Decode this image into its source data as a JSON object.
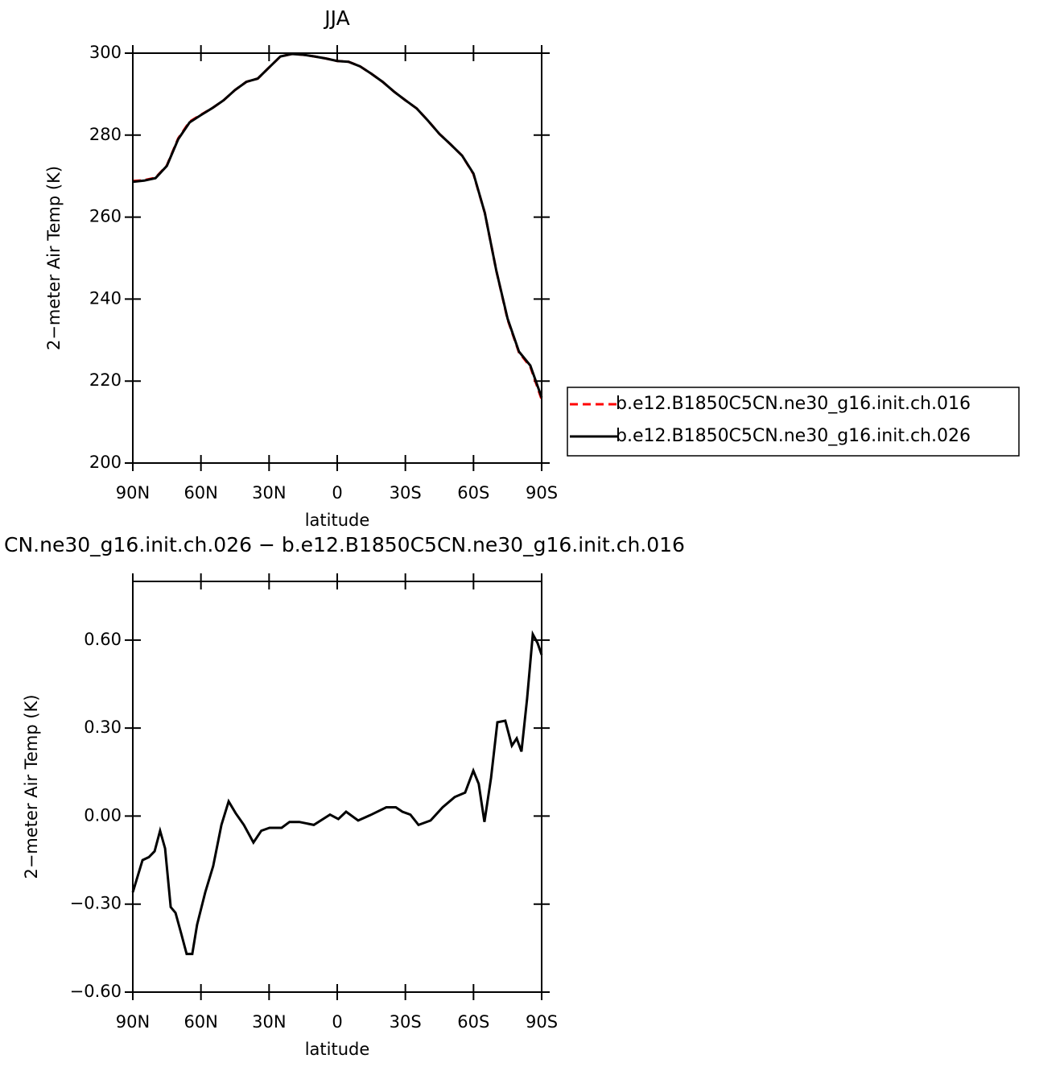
{
  "chart_data": [
    {
      "type": "line",
      "title": "JJA",
      "xlabel": "latitude",
      "ylabel": "2−meter Air Temp (K)",
      "x": [
        90,
        85,
        80,
        75,
        70,
        65,
        60,
        55,
        50,
        45,
        40,
        35,
        30,
        25,
        20,
        15,
        10,
        5,
        0,
        -5,
        -10,
        -15,
        -20,
        -25,
        -30,
        -35,
        -40,
        -45,
        -50,
        -55,
        -60,
        -65,
        -70,
        -75,
        -80,
        -85,
        -90
      ],
      "series": [
        {
          "name": "b.e12.B1850C5CN.ne30_g16.init.ch.016",
          "color": "#ff0000",
          "style": "dashed",
          "values": [
            268.8,
            269,
            269.6,
            272.6,
            279.2,
            283.3,
            285,
            286.6,
            288.5,
            291,
            293,
            293.8,
            296.5,
            299.2,
            299.8,
            299.6,
            299.2,
            298.7,
            298.1,
            297.9,
            296.8,
            295,
            293,
            290.6,
            288.5,
            286.5,
            283.5,
            280.3,
            277.7,
            275,
            270.5,
            261,
            247,
            235,
            227,
            223.5,
            215.5
          ]
        },
        {
          "name": "b.e12.B1850C5CN.ne30_g16.init.ch.026",
          "color": "#000000",
          "style": "solid",
          "values": [
            268.6,
            268.9,
            269.5,
            272.5,
            279,
            283.1,
            284.9,
            286.6,
            288.5,
            291,
            293,
            293.8,
            296.5,
            299.2,
            299.8,
            299.6,
            299.2,
            298.7,
            298.1,
            297.9,
            296.8,
            295,
            293,
            290.6,
            288.5,
            286.5,
            283.5,
            280.3,
            277.7,
            275,
            270.6,
            261,
            247,
            235.2,
            227.2,
            223.8,
            216
          ]
        }
      ],
      "xlim": [
        90,
        -90
      ],
      "xticks": [
        {
          "value": 90,
          "label": "90N"
        },
        {
          "value": 60,
          "label": "60N"
        },
        {
          "value": 30,
          "label": "30N"
        },
        0,
        {
          "value": -30,
          "label": "30S"
        },
        {
          "value": -60,
          "label": "60S"
        },
        {
          "value": -90,
          "label": "90S"
        }
      ],
      "ylim": [
        200,
        300
      ],
      "yticks": [
        200,
        220,
        240,
        260,
        280,
        300
      ],
      "legend": "right"
    },
    {
      "type": "line",
      "title": "CN.ne30_g16.init.ch.026 − b.e12.B1850C5CN.ne30_g16.init.ch.016",
      "xlabel": "latitude",
      "ylabel": "2−meter Air Temp (K)",
      "x": [
        90,
        85.7,
        82.9,
        80.4,
        78,
        75.8,
        73.3,
        71.2,
        68.7,
        66.3,
        63.8,
        61.7,
        58.1,
        54.6,
        51,
        47.8,
        44.7,
        41.1,
        36.9,
        33.4,
        29.8,
        24.5,
        21,
        16.7,
        10.3,
        3.2,
        -0.5,
        -3.9,
        -9.2,
        -14.5,
        -21.6,
        -25.8,
        -28.7,
        -32.2,
        -35.8,
        -41.1,
        -46.4,
        -51.7,
        -56.3,
        -59.9,
        -62.3,
        -64.8,
        -67.7,
        -70.5,
        -74,
        -76.9,
        -79,
        -81.1,
        -83.6,
        -86.1,
        -88.2,
        -90
      ],
      "series": [
        {
          "color": "#000000",
          "style": "solid",
          "values": [
            -0.26,
            -0.15,
            -0.14,
            -0.12,
            -0.05,
            -0.11,
            -0.31,
            -0.33,
            -0.4,
            -0.47,
            -0.47,
            -0.37,
            -0.26,
            -0.17,
            -0.03,
            0.05,
            0.01,
            -0.03,
            -0.09,
            -0.05,
            -0.04,
            -0.04,
            -0.02,
            -0.02,
            -0.03,
            0.005,
            -0.01,
            0.015,
            -0.015,
            0.003,
            0.03,
            0.03,
            0.015,
            0.005,
            -0.03,
            -0.015,
            0.03,
            0.065,
            0.08,
            0.155,
            0.11,
            -0.02,
            0.13,
            0.32,
            0.325,
            0.24,
            0.265,
            0.22,
            0.4,
            0.62,
            0.59,
            0.55
          ]
        }
      ],
      "xlim": [
        90,
        -90
      ],
      "xticks": [
        {
          "value": 90,
          "label": "90N"
        },
        {
          "value": 60,
          "label": "60N"
        },
        {
          "value": 30,
          "label": "30N"
        },
        0,
        {
          "value": -30,
          "label": "30S"
        },
        {
          "value": -60,
          "label": "60S"
        },
        {
          "value": -90,
          "label": "90S"
        }
      ],
      "ylim": [
        -0.6,
        0.8
      ],
      "yticks": [
        {
          "value": -0.6,
          "label": "−0.60"
        },
        {
          "value": -0.3,
          "label": "−0.30"
        },
        {
          "value": 0,
          "label": "0.00"
        },
        {
          "value": 0.3,
          "label": "0.30"
        },
        {
          "value": 0.6,
          "label": "0.60"
        }
      ]
    }
  ]
}
